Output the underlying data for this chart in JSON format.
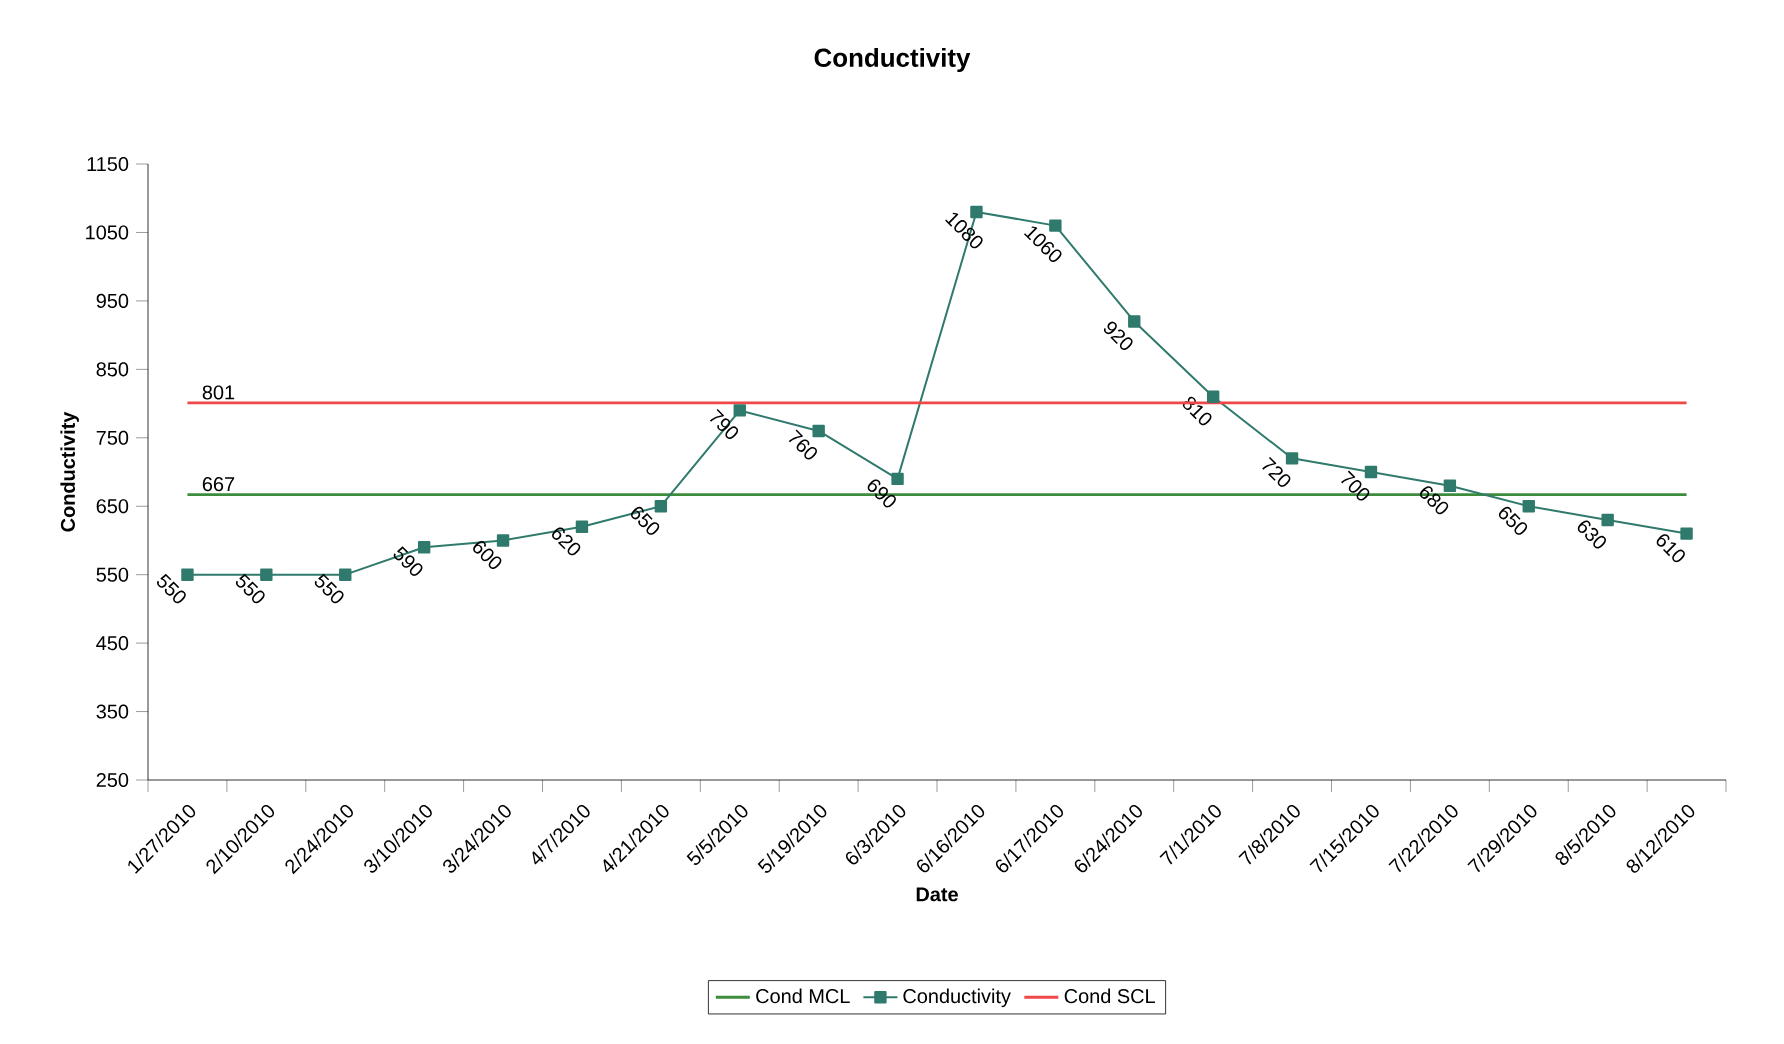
{
  "chart_data": {
    "type": "line",
    "title": "Conductivity",
    "xlabel": "Date",
    "ylabel": "Conductivity",
    "categories": [
      "1/27/2010",
      "2/10/2010",
      "2/24/2010",
      "3/10/2010",
      "3/24/2010",
      "4/7/2010",
      "4/21/2010",
      "5/5/2010",
      "5/19/2010",
      "6/3/2010",
      "6/16/2010",
      "6/17/2010",
      "6/24/2010",
      "7/1/2010",
      "7/8/2010",
      "7/15/2010",
      "7/22/2010",
      "7/29/2010",
      "8/5/2010",
      "8/12/2010"
    ],
    "series": [
      {
        "name": "Cond MCL",
        "color": "#3c8c3c",
        "marker": "none",
        "values": [
          667,
          667,
          667,
          667,
          667,
          667,
          667,
          667,
          667,
          667,
          667,
          667,
          667,
          667,
          667,
          667,
          667,
          667,
          667,
          667
        ],
        "value_labels": [
          "667",
          null,
          null,
          null,
          null,
          null,
          null,
          null,
          null,
          null,
          null,
          null,
          null,
          null,
          null,
          null,
          null,
          null,
          null,
          null
        ]
      },
      {
        "name": "Conductivity",
        "color": "#2f7a6c",
        "marker": "square",
        "values": [
          550,
          550,
          550,
          590,
          600,
          620,
          650,
          790,
          760,
          690,
          1080,
          1060,
          920,
          810,
          720,
          700,
          680,
          650,
          630,
          610
        ],
        "value_labels": [
          "550",
          "550",
          "550",
          "590",
          "600",
          "620",
          "650",
          "790",
          "760",
          "690",
          "1080",
          "1060",
          "920",
          "810",
          "720",
          "700",
          "680",
          "650",
          "630",
          "610"
        ]
      },
      {
        "name": "Cond SCL",
        "color": "#f04848",
        "marker": "none",
        "values": [
          801,
          801,
          801,
          801,
          801,
          801,
          801,
          801,
          801,
          801,
          801,
          801,
          801,
          801,
          801,
          801,
          801,
          801,
          801,
          801
        ],
        "value_labels": [
          "801",
          null,
          null,
          null,
          null,
          null,
          null,
          null,
          null,
          null,
          null,
          null,
          null,
          null,
          null,
          null,
          null,
          null,
          null,
          null
        ]
      }
    ],
    "ylim": [
      250,
      1150
    ],
    "yticks": [
      250,
      350,
      450,
      550,
      650,
      750,
      850,
      950,
      1050,
      1150
    ],
    "grid": false,
    "legend": "bottom"
  }
}
